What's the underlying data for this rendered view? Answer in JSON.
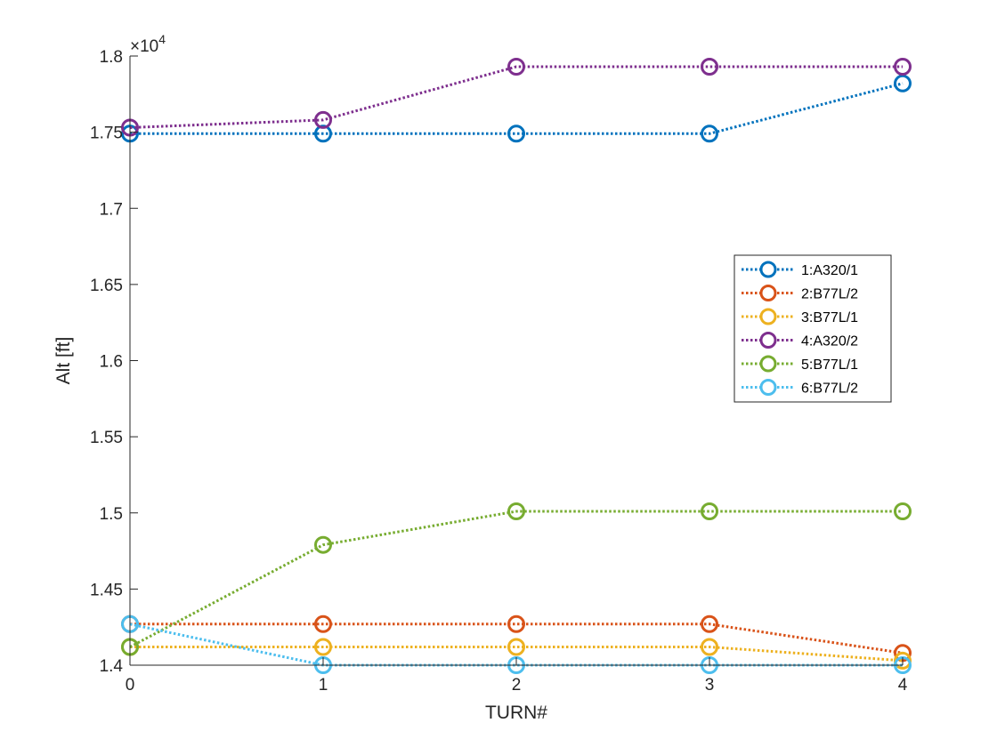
{
  "chart_data": {
    "type": "line",
    "xlabel": "TURN#",
    "ylabel": "Alt [ft]",
    "y_exponent_label": "×10",
    "y_exponent_power": "4",
    "x_ticks": [
      0,
      1,
      2,
      3,
      4
    ],
    "x_tick_labels": [
      "0",
      "1",
      "2",
      "3",
      "4"
    ],
    "y_ticks": [
      14000,
      14500,
      15000,
      15500,
      16000,
      16500,
      17000,
      17500,
      18000
    ],
    "y_tick_labels": [
      "1.4",
      "1.45",
      "1.5",
      "1.55",
      "1.6",
      "1.65",
      "1.7",
      "1.75",
      "1.8"
    ],
    "xlim": [
      0,
      4
    ],
    "ylim": [
      14000,
      18000
    ],
    "grid": false,
    "legend_position": "right",
    "x": [
      0,
      1,
      2,
      3,
      4
    ],
    "series": [
      {
        "name": "1:A320/1",
        "color": "#0072BD",
        "values": [
          17490,
          17490,
          17490,
          17490,
          17820
        ]
      },
      {
        "name": "2:B77L/2",
        "color": "#D95319",
        "values": [
          14270,
          14270,
          14270,
          14270,
          14080
        ]
      },
      {
        "name": "3:B77L/1",
        "color": "#EDB120",
        "values": [
          14120,
          14120,
          14120,
          14120,
          14030
        ]
      },
      {
        "name": "4:A320/2",
        "color": "#7E2F8E",
        "values": [
          17530,
          17580,
          17930,
          17930,
          17930
        ]
      },
      {
        "name": "5:B77L/1",
        "color": "#77AC30",
        "values": [
          14120,
          14790,
          15010,
          15010,
          15010
        ]
      },
      {
        "name": "6:B77L/2",
        "color": "#4DBEEE",
        "values": [
          14270,
          14000,
          14000,
          14000,
          14000
        ]
      }
    ]
  }
}
